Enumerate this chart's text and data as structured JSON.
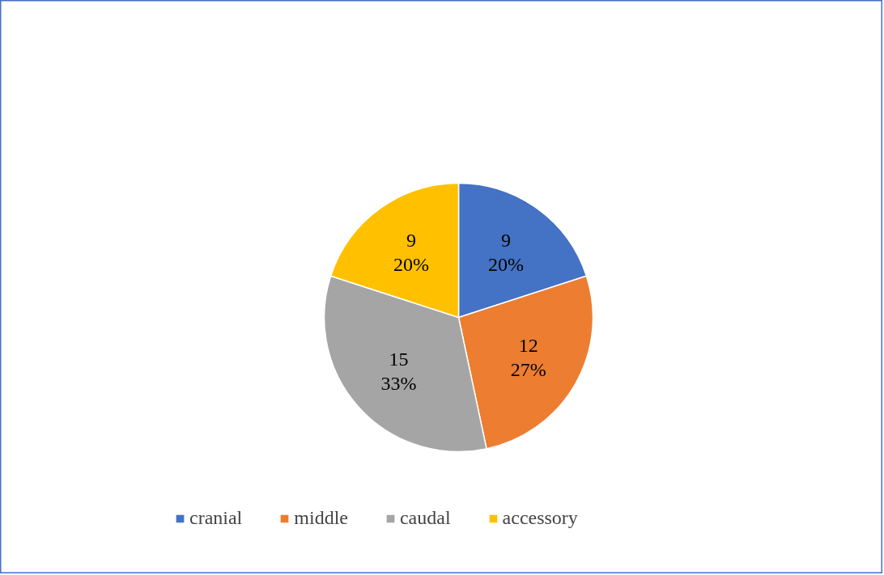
{
  "chart_data": {
    "type": "pie",
    "categories": [
      "cranial",
      "middle",
      "caudal",
      "accessory"
    ],
    "values": [
      9,
      12,
      15,
      9
    ],
    "colors": [
      "#4472c4",
      "#ed7d31",
      "#a5a5a5",
      "#ffc000"
    ],
    "value_labels": [
      "9\n20%",
      "12\n27%",
      "15\n33%",
      "9\n20%"
    ],
    "legend": "bottom"
  }
}
